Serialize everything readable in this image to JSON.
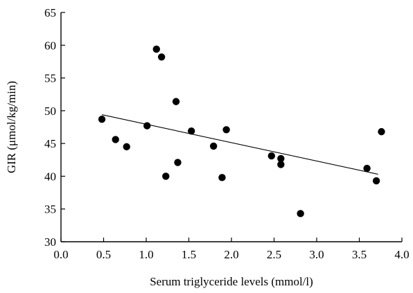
{
  "chart_data": {
    "type": "scatter",
    "title": "",
    "xlabel": "Serum triglyceride levels (mmol/l)",
    "ylabel": "GIR (μmol/kg/min)",
    "xlim": [
      0.0,
      4.0
    ],
    "ylim": [
      30,
      65
    ],
    "xticks": [
      "0.0",
      "0.5",
      "1.0",
      "1.5",
      "2.0",
      "2.5",
      "3.0",
      "3.5",
      "4.0"
    ],
    "yticks": [
      "30",
      "35",
      "40",
      "45",
      "50",
      "55",
      "60",
      "65"
    ],
    "grid": false,
    "legend": "none",
    "points": [
      {
        "x": 0.48,
        "y": 48.7
      },
      {
        "x": 0.64,
        "y": 45.6
      },
      {
        "x": 0.77,
        "y": 44.5
      },
      {
        "x": 1.01,
        "y": 47.7
      },
      {
        "x": 1.12,
        "y": 59.4
      },
      {
        "x": 1.18,
        "y": 58.2
      },
      {
        "x": 1.23,
        "y": 40.0
      },
      {
        "x": 1.35,
        "y": 51.4
      },
      {
        "x": 1.37,
        "y": 42.1
      },
      {
        "x": 1.53,
        "y": 46.9
      },
      {
        "x": 1.79,
        "y": 44.6
      },
      {
        "x": 1.89,
        "y": 39.8
      },
      {
        "x": 1.94,
        "y": 47.1
      },
      {
        "x": 2.47,
        "y": 43.1
      },
      {
        "x": 2.58,
        "y": 42.7
      },
      {
        "x": 2.58,
        "y": 41.8
      },
      {
        "x": 2.81,
        "y": 34.3
      },
      {
        "x": 3.59,
        "y": 41.2
      },
      {
        "x": 3.7,
        "y": 39.3
      },
      {
        "x": 3.76,
        "y": 46.8
      }
    ],
    "trendline": {
      "x": [
        0.48,
        3.72
      ],
      "y": [
        49.4,
        40.3
      ]
    },
    "colors": {
      "points": "#000000",
      "line": "#000000",
      "axis": "#000000"
    }
  }
}
